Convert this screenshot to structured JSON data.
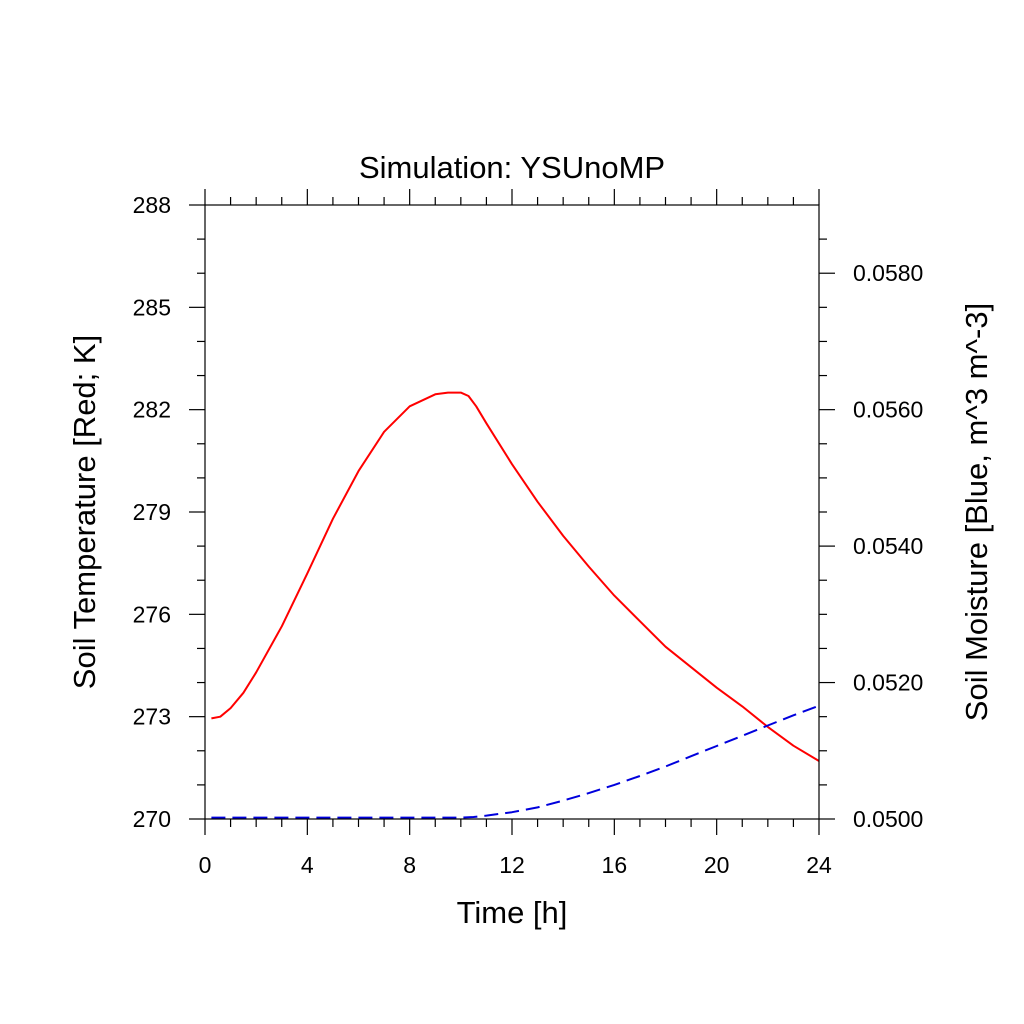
{
  "chart_data": {
    "type": "line",
    "title": "Simulation: YSUnoMP",
    "xlabel": "Time [h]",
    "ylabel_left": "Soil Temperature [Red; K]",
    "ylabel_right": "Soil Moisture [Blue, m^3 m^-3]",
    "xlim": [
      0,
      24
    ],
    "ylim_left": [
      270,
      288
    ],
    "ylim_right": [
      0.05,
      0.059
    ],
    "x_ticks": [
      0,
      4,
      8,
      12,
      16,
      20,
      24
    ],
    "x_tick_labels": [
      "0",
      "4",
      "8",
      "12",
      "16",
      "20",
      "24"
    ],
    "y_left_ticks": [
      270,
      273,
      276,
      279,
      282,
      285,
      288
    ],
    "y_left_tick_labels": [
      "270",
      "273",
      "276",
      "279",
      "282",
      "285",
      "288"
    ],
    "y_right_ticks": [
      0.05,
      0.052,
      0.054,
      0.056,
      0.058
    ],
    "y_right_tick_labels": [
      "0.0500",
      "0.0520",
      "0.0540",
      "0.0560",
      "0.0580"
    ],
    "grid": false,
    "colors": {
      "temperature": "#ff0000",
      "moisture": "#0000dd"
    },
    "series": [
      {
        "axis": "left",
        "style": "solid",
        "color": "#ff0000",
        "x": [
          0.25,
          0.6,
          1,
          1.5,
          2,
          3,
          4,
          5,
          6,
          7,
          8,
          9,
          9.5,
          10,
          10.3,
          10.6,
          11,
          12,
          13,
          14,
          15,
          16,
          17,
          18,
          19,
          20,
          21,
          22,
          23,
          24
        ],
        "values": [
          272.95,
          273.0,
          273.25,
          273.7,
          274.3,
          275.65,
          277.2,
          278.8,
          280.2,
          281.35,
          282.1,
          282.45,
          282.5,
          282.5,
          282.4,
          282.1,
          281.6,
          280.4,
          279.3,
          278.3,
          277.4,
          276.55,
          275.8,
          275.05,
          274.45,
          273.85,
          273.3,
          272.7,
          272.15,
          271.7
        ]
      },
      {
        "axis": "right",
        "style": "dashed",
        "color": "#0000dd",
        "x": [
          0.25,
          2,
          4,
          6,
          8,
          10,
          10.5,
          11,
          12,
          13,
          14,
          15,
          16,
          17,
          18,
          19,
          20,
          21,
          22,
          23,
          24
        ],
        "values": [
          0.05002,
          0.05002,
          0.05002,
          0.05002,
          0.05002,
          0.05002,
          0.05003,
          0.05005,
          0.0501,
          0.05017,
          0.05027,
          0.05038,
          0.0505,
          0.05063,
          0.05077,
          0.05092,
          0.05107,
          0.05122,
          0.05137,
          0.05152,
          0.05166
        ]
      }
    ]
  }
}
